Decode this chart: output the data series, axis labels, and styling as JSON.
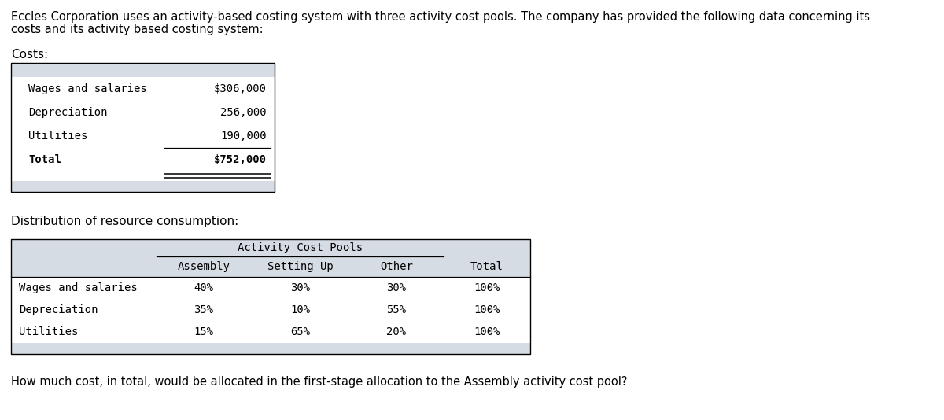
{
  "intro_text_line1": "Eccles Corporation uses an activity-based costing system with three activity cost pools. The company has provided the following data concerning its",
  "intro_text_line2": "costs and its activity based costing system:",
  "costs_label": "Costs:",
  "costs_rows": [
    [
      "Wages and salaries",
      "$306,000"
    ],
    [
      "Depreciation",
      "256,000"
    ],
    [
      "Utilities",
      "190,000"
    ]
  ],
  "costs_total_row": [
    "Total",
    "$752,000"
  ],
  "dist_label": "Distribution of resource consumption:",
  "activity_header": "Activity Cost Pools",
  "col_headers": [
    "",
    "Assembly",
    "Setting Up",
    "Other",
    "Total"
  ],
  "dist_rows": [
    [
      "Wages and salaries",
      "40%",
      "30%",
      "30%",
      "100%"
    ],
    [
      "Depreciation",
      "35%",
      "10%",
      "55%",
      "100%"
    ],
    [
      "Utilities",
      "15%",
      "65%",
      "20%",
      "100%"
    ]
  ],
  "question_text": "How much cost, in total, would be allocated in the first-stage allocation to the Assembly activity cost pool?",
  "header_bg": "#d6dce4",
  "row_bg": "#ffffff",
  "footer_bg": "#d6dce4",
  "border_color": "#000000",
  "text_color": "#000000",
  "bg_color": "#ffffff",
  "fs_intro": 10.5,
  "fs_table": 10,
  "fs_label": 11,
  "fs_question": 10.5,
  "fig_w": 12.0,
  "fig_h": 5.34,
  "dpi": 100
}
